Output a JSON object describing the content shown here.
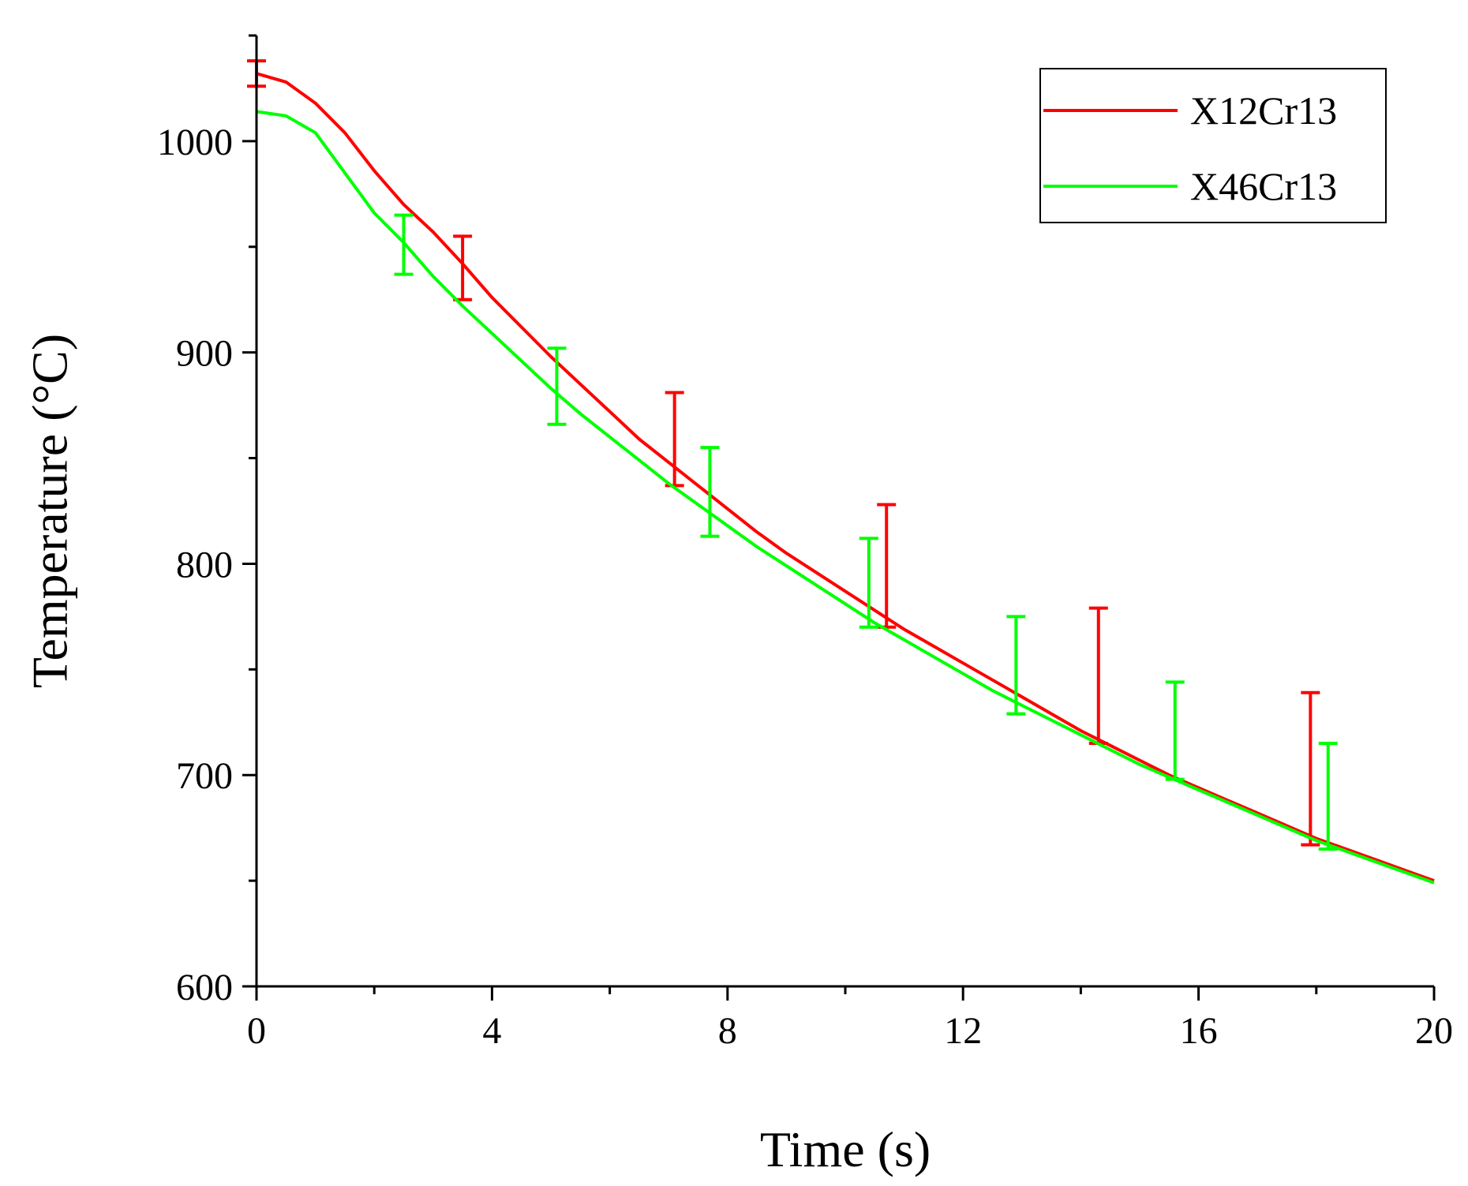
{
  "chart_data": {
    "type": "line",
    "title": "",
    "xlabel": "Time (s)",
    "ylabel": "Temperature (°C)",
    "xlim": [
      0,
      20
    ],
    "ylim": [
      600,
      1050
    ],
    "xticks": [
      0,
      4,
      8,
      12,
      16,
      20
    ],
    "xtick_labels": [
      "0",
      "4",
      "8",
      "12",
      "16",
      "20"
    ],
    "yticks": [
      600,
      700,
      800,
      900,
      1000
    ],
    "ytick_labels": [
      "600",
      "700",
      "800",
      "900",
      "1000"
    ],
    "grid": false,
    "legend_position": "top-right",
    "series": [
      {
        "name": "X12Cr13",
        "color": "#ff0000",
        "x": [
          0,
          0.5,
          1,
          1.5,
          2,
          2.5,
          3,
          3.5,
          4,
          4.5,
          5,
          5.5,
          6,
          6.5,
          7,
          7.5,
          8,
          8.5,
          9,
          9.5,
          10,
          10.5,
          11,
          11.5,
          12,
          12.5,
          13,
          13.5,
          14,
          14.5,
          15,
          15.5,
          16,
          16.5,
          17,
          17.5,
          18,
          18.5,
          19,
          19.5,
          20
        ],
        "y": [
          1032,
          1028,
          1018,
          1004,
          986,
          970,
          957,
          942,
          926,
          912,
          898,
          885,
          872,
          859,
          848,
          837,
          826,
          815,
          805,
          796,
          787,
          778,
          769,
          761,
          753,
          745,
          737,
          729,
          721,
          714,
          707,
          700,
          694,
          688,
          682,
          676,
          670,
          665,
          660,
          655,
          650
        ],
        "error_bars": [
          {
            "x": 0,
            "y": 1032,
            "err": 6
          },
          {
            "x": 3.5,
            "y": 940,
            "err": 15
          },
          {
            "x": 7.1,
            "y": 859,
            "err": 22
          },
          {
            "x": 10.7,
            "y": 799,
            "err": 29
          },
          {
            "x": 14.3,
            "y": 747,
            "err": 32
          },
          {
            "x": 17.9,
            "y": 703,
            "err": 36
          }
        ]
      },
      {
        "name": "X46Cr13",
        "color": "#00ff00",
        "x": [
          0,
          0.5,
          1,
          1.5,
          2,
          2.5,
          3,
          3.5,
          4,
          4.5,
          5,
          5.5,
          6,
          6.5,
          7,
          7.5,
          8,
          8.5,
          9,
          9.5,
          10,
          10.5,
          11,
          11.5,
          12,
          12.5,
          13,
          13.5,
          14,
          14.5,
          15,
          15.5,
          16,
          16.5,
          17,
          17.5,
          18,
          18.5,
          19,
          19.5,
          20
        ],
        "y": [
          1014,
          1012,
          1004,
          985,
          966,
          952,
          936,
          922,
          909,
          896,
          883,
          871,
          860,
          849,
          838,
          828,
          818,
          808,
          799,
          790,
          781,
          772,
          764,
          756,
          748,
          740,
          733,
          726,
          719,
          712,
          705,
          699,
          693,
          687,
          681,
          675,
          669,
          664,
          659,
          654,
          649
        ],
        "error_bars": [
          {
            "x": 2.5,
            "y": 951,
            "err": 14
          },
          {
            "x": 5.1,
            "y": 884,
            "err": 18
          },
          {
            "x": 7.7,
            "y": 834,
            "err": 21
          },
          {
            "x": 10.4,
            "y": 791,
            "err": 21
          },
          {
            "x": 12.9,
            "y": 752,
            "err": 23
          },
          {
            "x": 15.6,
            "y": 721,
            "err": 23
          },
          {
            "x": 18.2,
            "y": 690,
            "err": 25
          }
        ]
      }
    ]
  }
}
